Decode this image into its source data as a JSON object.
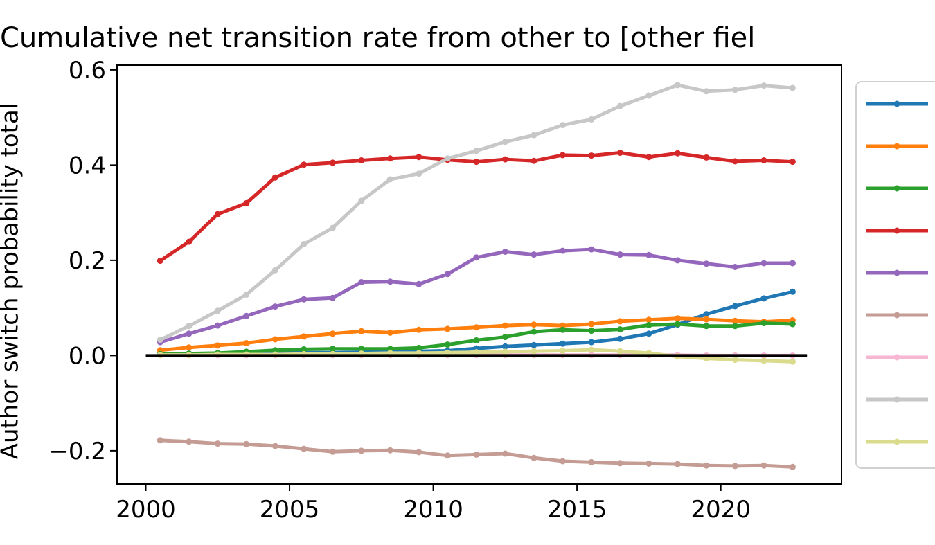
{
  "chart_data": {
    "type": "line",
    "title": "Cumulative net transition rate from other to [other fiel",
    "xlabel": "",
    "ylabel": "Author switch probability total",
    "xlim": [
      1999,
      2024.2
    ],
    "ylim": [
      -0.27,
      0.61
    ],
    "x_ticks": [
      2000,
      2005,
      2010,
      2015,
      2020
    ],
    "y_ticks": [
      -0.2,
      0.0,
      0.2,
      0.4,
      0.6
    ],
    "x_tick_labels": [
      "2000",
      "2005",
      "2010",
      "2015",
      "2020"
    ],
    "y_tick_labels": [
      "−0.2",
      "0.0",
      "0.2",
      "0.4",
      "0.6"
    ],
    "grid": false,
    "legend_position": "right, partially cut off",
    "x": [
      2000.5,
      2001.5,
      2002.5,
      2003.5,
      2004.5,
      2005.5,
      2006.5,
      2007.5,
      2008.5,
      2009.5,
      2010.5,
      2011.5,
      2012.5,
      2013.5,
      2014.5,
      2015.5,
      2016.5,
      2017.5,
      2018.5,
      2019.5,
      2020.5,
      2021.5,
      2022.5
    ],
    "series": [
      {
        "color": "#1f77b4",
        "values": [
          0.003,
          0.004,
          0.004,
          0.005,
          0.005,
          0.006,
          0.006,
          0.007,
          0.008,
          0.009,
          0.01,
          0.015,
          0.019,
          0.022,
          0.025,
          0.028,
          0.035,
          0.046,
          0.065,
          0.087,
          0.104,
          0.12,
          0.134
        ]
      },
      {
        "color": "#ff7f0e",
        "values": [
          0.011,
          0.017,
          0.021,
          0.026,
          0.034,
          0.04,
          0.046,
          0.051,
          0.048,
          0.054,
          0.056,
          0.059,
          0.063,
          0.065,
          0.063,
          0.066,
          0.072,
          0.075,
          0.078,
          0.076,
          0.073,
          0.071,
          0.074
        ]
      },
      {
        "color": "#2ca02c",
        "values": [
          0.003,
          0.004,
          0.005,
          0.008,
          0.011,
          0.013,
          0.014,
          0.014,
          0.014,
          0.016,
          0.023,
          0.032,
          0.039,
          0.05,
          0.054,
          0.052,
          0.055,
          0.064,
          0.066,
          0.062,
          0.062,
          0.068,
          0.066
        ]
      },
      {
        "color": "#d62728",
        "values": [
          0.199,
          0.239,
          0.297,
          0.32,
          0.374,
          0.401,
          0.405,
          0.41,
          0.414,
          0.417,
          0.411,
          0.407,
          0.412,
          0.409,
          0.421,
          0.42,
          0.426,
          0.417,
          0.425,
          0.416,
          0.408,
          0.41,
          0.407
        ]
      },
      {
        "color": "#9467bd",
        "values": [
          0.028,
          0.046,
          0.063,
          0.083,
          0.103,
          0.118,
          0.121,
          0.154,
          0.155,
          0.15,
          0.171,
          0.206,
          0.218,
          0.212,
          0.22,
          0.223,
          0.212,
          0.211,
          0.2,
          0.193,
          0.186,
          0.194,
          0.194
        ]
      },
      {
        "color": "#c49c94",
        "values": [
          -0.178,
          -0.181,
          -0.185,
          -0.186,
          -0.19,
          -0.196,
          -0.202,
          -0.2,
          -0.199,
          -0.203,
          -0.21,
          -0.208,
          -0.206,
          -0.215,
          -0.222,
          -0.224,
          -0.226,
          -0.227,
          -0.228,
          -0.231,
          -0.232,
          -0.231,
          -0.234
        ]
      },
      {
        "color": "#f7b6d2",
        "values": [
          0.001,
          0.001,
          0.001,
          0.001,
          0.001,
          0.001,
          0.001,
          0.001,
          0.001,
          0.001,
          0.001,
          0.001,
          0.001,
          0.001,
          0.001,
          0.001,
          0.001,
          0.001,
          0.001,
          0.0,
          0.0,
          0.0,
          0.0
        ]
      },
      {
        "color": "#c7c7c7",
        "values": [
          0.033,
          0.062,
          0.094,
          0.128,
          0.179,
          0.234,
          0.268,
          0.325,
          0.37,
          0.382,
          0.414,
          0.43,
          0.449,
          0.463,
          0.484,
          0.496,
          0.524,
          0.546,
          0.568,
          0.555,
          0.558,
          0.567,
          0.562
        ]
      },
      {
        "color": "#dbdb8d",
        "values": [
          0.001,
          0.001,
          0.002,
          0.002,
          0.002,
          0.003,
          0.003,
          0.004,
          0.005,
          0.005,
          0.006,
          0.007,
          0.008,
          0.009,
          0.01,
          0.012,
          0.009,
          0.005,
          -0.002,
          -0.006,
          -0.009,
          -0.011,
          -0.013
        ]
      }
    ],
    "zero_line": {
      "x": [
        2000,
        2023
      ],
      "y": 0.0,
      "color": "#000000"
    }
  }
}
